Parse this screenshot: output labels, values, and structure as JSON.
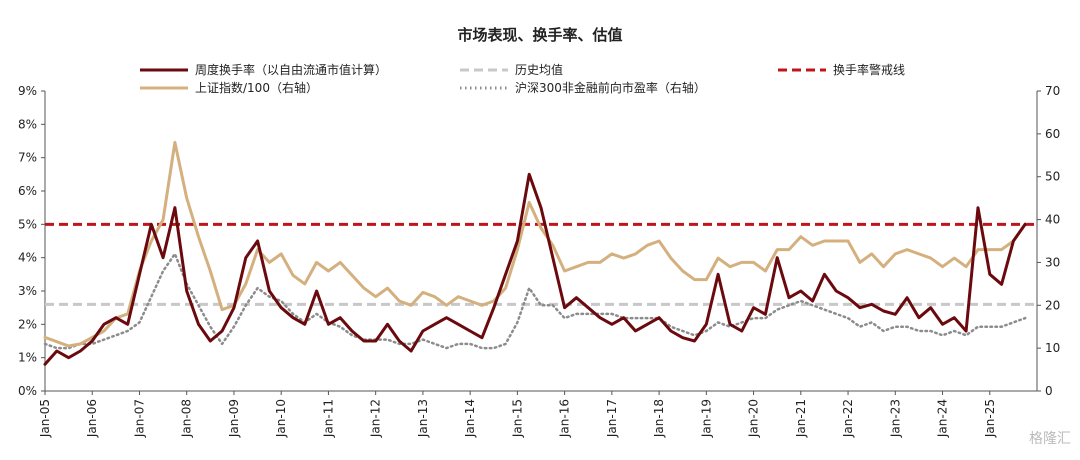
{
  "chart_data": {
    "type": "line",
    "title": "市场表现、换手率、估值",
    "x": [
      "2005-01",
      "2005-04",
      "2005-07",
      "2005-10",
      "2006-01",
      "2006-04",
      "2006-07",
      "2006-10",
      "2007-01",
      "2007-04",
      "2007-07",
      "2007-10",
      "2008-01",
      "2008-04",
      "2008-07",
      "2008-10",
      "2009-01",
      "2009-04",
      "2009-07",
      "2009-10",
      "2010-01",
      "2010-04",
      "2010-07",
      "2010-10",
      "2011-01",
      "2011-04",
      "2011-07",
      "2011-10",
      "2012-01",
      "2012-04",
      "2012-07",
      "2012-10",
      "2013-01",
      "2013-04",
      "2013-07",
      "2013-10",
      "2014-01",
      "2014-04",
      "2014-07",
      "2014-10",
      "2015-01",
      "2015-04",
      "2015-07",
      "2015-10",
      "2016-01",
      "2016-04",
      "2016-07",
      "2016-10",
      "2017-01",
      "2017-04",
      "2017-07",
      "2017-10",
      "2018-01",
      "2018-04",
      "2018-07",
      "2018-10",
      "2019-01",
      "2019-04",
      "2019-07",
      "2019-10",
      "2020-01",
      "2020-04",
      "2020-07",
      "2020-10",
      "2021-01",
      "2021-04",
      "2021-07",
      "2021-10",
      "2022-01",
      "2022-04",
      "2022-07",
      "2022-10",
      "2023-01",
      "2023-04",
      "2023-07",
      "2023-10",
      "2024-01",
      "2024-04",
      "2024-07",
      "2024-10",
      "2025-01",
      "2025-04",
      "2025-07",
      "2025-10"
    ],
    "xlim": [
      "2005-01",
      "2026-01"
    ],
    "xticks": [
      {
        "value": "2005-01",
        "label": "Jan-05"
      },
      {
        "value": "2006-01",
        "label": "Jan-06"
      },
      {
        "value": "2007-01",
        "label": "Jan-07"
      },
      {
        "value": "2008-01",
        "label": "Jan-08"
      },
      {
        "value": "2009-01",
        "label": "Jan-09"
      },
      {
        "value": "2010-01",
        "label": "Jan-10"
      },
      {
        "value": "2011-01",
        "label": "Jan-11"
      },
      {
        "value": "2012-01",
        "label": "Jan-12"
      },
      {
        "value": "2013-01",
        "label": "Jan-13"
      },
      {
        "value": "2014-01",
        "label": "Jan-14"
      },
      {
        "value": "2015-01",
        "label": "Jan-15"
      },
      {
        "value": "2016-01",
        "label": "Jan-16"
      },
      {
        "value": "2017-01",
        "label": "Jan-17"
      },
      {
        "value": "2018-01",
        "label": "Jan-18"
      },
      {
        "value": "2019-01",
        "label": "Jan-19"
      },
      {
        "value": "2020-01",
        "label": "Jan-20"
      },
      {
        "value": "2021-01",
        "label": "Jan-21"
      },
      {
        "value": "2022-01",
        "label": "Jan-22"
      },
      {
        "value": "2023-01",
        "label": "Jan-23"
      },
      {
        "value": "2024-01",
        "label": "Jan-24"
      },
      {
        "value": "2025-01",
        "label": "Jan-25"
      }
    ],
    "ylim": [
      0,
      9
    ],
    "yticks": [
      {
        "value": 0,
        "label": "0%"
      },
      {
        "value": 1,
        "label": "1%"
      },
      {
        "value": 2,
        "label": "2%"
      },
      {
        "value": 3,
        "label": "3%"
      },
      {
        "value": 4,
        "label": "4%"
      },
      {
        "value": 5,
        "label": "5%"
      },
      {
        "value": 6,
        "label": "6%"
      },
      {
        "value": 7,
        "label": "7%"
      },
      {
        "value": 8,
        "label": "8%"
      },
      {
        "value": 9,
        "label": "9%"
      }
    ],
    "y2lim": [
      0,
      70
    ],
    "y2ticks": [
      0,
      10,
      20,
      30,
      40,
      50,
      60,
      70
    ],
    "series": [
      {
        "name": "周度换手率（以自由流通市值计算）",
        "color": "#6b0a0e",
        "width": 3,
        "dash": "none",
        "values": [
          0.8,
          1.2,
          1.0,
          1.2,
          1.5,
          2.0,
          2.2,
          2.0,
          3.5,
          5.0,
          4.0,
          5.5,
          3.0,
          2.0,
          1.5,
          1.8,
          2.5,
          4.0,
          4.5,
          3.0,
          2.5,
          2.2,
          2.0,
          3.0,
          2.0,
          2.2,
          1.8,
          1.5,
          1.5,
          2.0,
          1.5,
          1.2,
          1.8,
          2.0,
          2.2,
          2.0,
          1.8,
          1.6,
          2.5,
          3.5,
          4.5,
          6.5,
          5.5,
          4.0,
          2.5,
          2.8,
          2.5,
          2.2,
          2.0,
          2.2,
          1.8,
          2.0,
          2.2,
          1.8,
          1.6,
          1.5,
          2.0,
          3.5,
          2.0,
          1.8,
          2.5,
          2.3,
          4.0,
          2.8,
          3.0,
          2.7,
          3.5,
          3.0,
          2.8,
          2.5,
          2.6,
          2.4,
          2.3,
          2.8,
          2.2,
          2.5,
          2.0,
          2.2,
          1.8,
          5.5,
          3.5,
          3.2,
          4.5,
          5.0
        ]
      },
      {
        "name": "上证指数/100（右轴）",
        "color": "#d4b07f",
        "width": 3,
        "dash": "none",
        "axis": "y2",
        "values": [
          12.5,
          11.5,
          10.5,
          11,
          12.5,
          14,
          17,
          18,
          28,
          35,
          40,
          58,
          45,
          36,
          28,
          19,
          20,
          25,
          33,
          30,
          32,
          27,
          25,
          30,
          28,
          30,
          27,
          24,
          22,
          24,
          21,
          20,
          23,
          22,
          20,
          22,
          21,
          20,
          21,
          24,
          33,
          44,
          38,
          34,
          28,
          29,
          30,
          30,
          32,
          31,
          32,
          34,
          35,
          31,
          28,
          26,
          26,
          31,
          29,
          30,
          30,
          28,
          33,
          33,
          36,
          34,
          35,
          35,
          35,
          30,
          32,
          29,
          32,
          33,
          32,
          31,
          29,
          31,
          29,
          33,
          33,
          33,
          35,
          39
        ]
      },
      {
        "name": "沪深300非金融前向市盈率（右轴）",
        "color": "#8c8c8c",
        "width": 2.5,
        "dash": "1.5 3.5",
        "axis": "y2",
        "values": [
          11,
          10,
          10,
          11,
          11,
          12,
          13,
          14,
          16,
          22,
          28,
          32,
          25,
          20,
          15,
          11,
          15,
          20,
          24,
          22,
          21,
          18,
          16,
          18,
          16,
          15,
          13,
          12,
          12,
          12,
          11,
          11,
          12,
          11,
          10,
          11,
          11,
          10,
          10,
          11,
          16,
          24,
          20,
          20,
          17,
          18,
          18,
          18,
          18,
          17,
          17,
          17,
          17,
          15,
          14,
          13,
          14,
          16,
          15,
          16,
          17,
          17,
          19,
          20,
          21,
          20,
          19,
          18,
          17,
          15,
          16,
          14,
          15,
          15,
          14,
          14,
          13,
          14,
          13,
          15,
          15,
          15,
          16,
          17
        ]
      }
    ],
    "hlines": [
      {
        "name": "历史均值",
        "value": 2.6,
        "color": "#c8c8c8",
        "dash": "9 5"
      },
      {
        "name": "换手率警戒线",
        "value": 5,
        "color": "#c0141c",
        "dash": "9 5"
      }
    ],
    "watermark": "格隆汇"
  }
}
